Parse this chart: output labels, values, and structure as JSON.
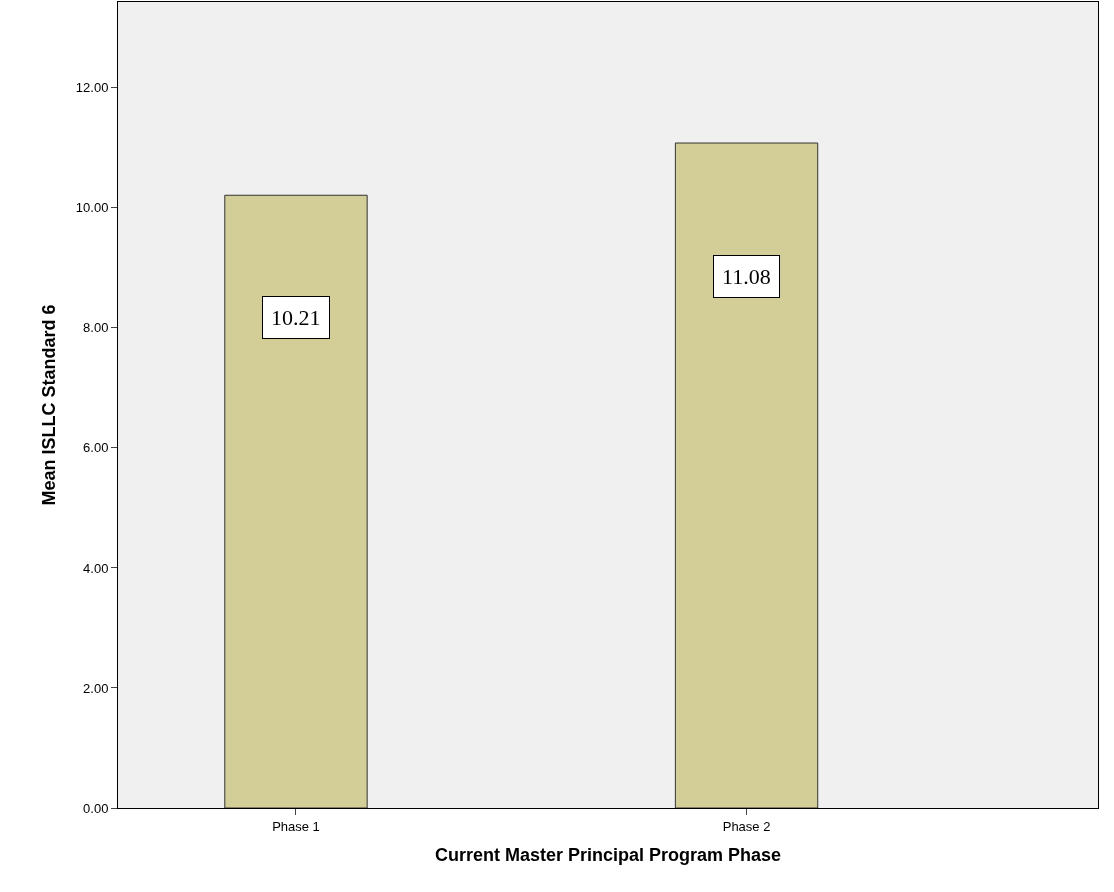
{
  "chart_data": {
    "type": "bar",
    "xlabel": "Current Master Principal Program Phase",
    "ylabel": "Mean ISLLC Standard 6",
    "categories": [
      "Phase 1",
      "Phase 2"
    ],
    "values": [
      10.21,
      11.08
    ],
    "color": "#d3ce97",
    "ylim": [
      0,
      13.43
    ],
    "yticks": [
      {
        "value": 0,
        "label": "0.00"
      },
      {
        "value": 2,
        "label": "2.00"
      },
      {
        "value": 4,
        "label": "4.00"
      },
      {
        "value": 6,
        "label": "6.00"
      },
      {
        "value": 8,
        "label": "8.00"
      },
      {
        "value": 10,
        "label": "10.00"
      },
      {
        "value": 12,
        "label": "12.00"
      }
    ],
    "data_labels": true,
    "grid": false,
    "legend": false
  }
}
